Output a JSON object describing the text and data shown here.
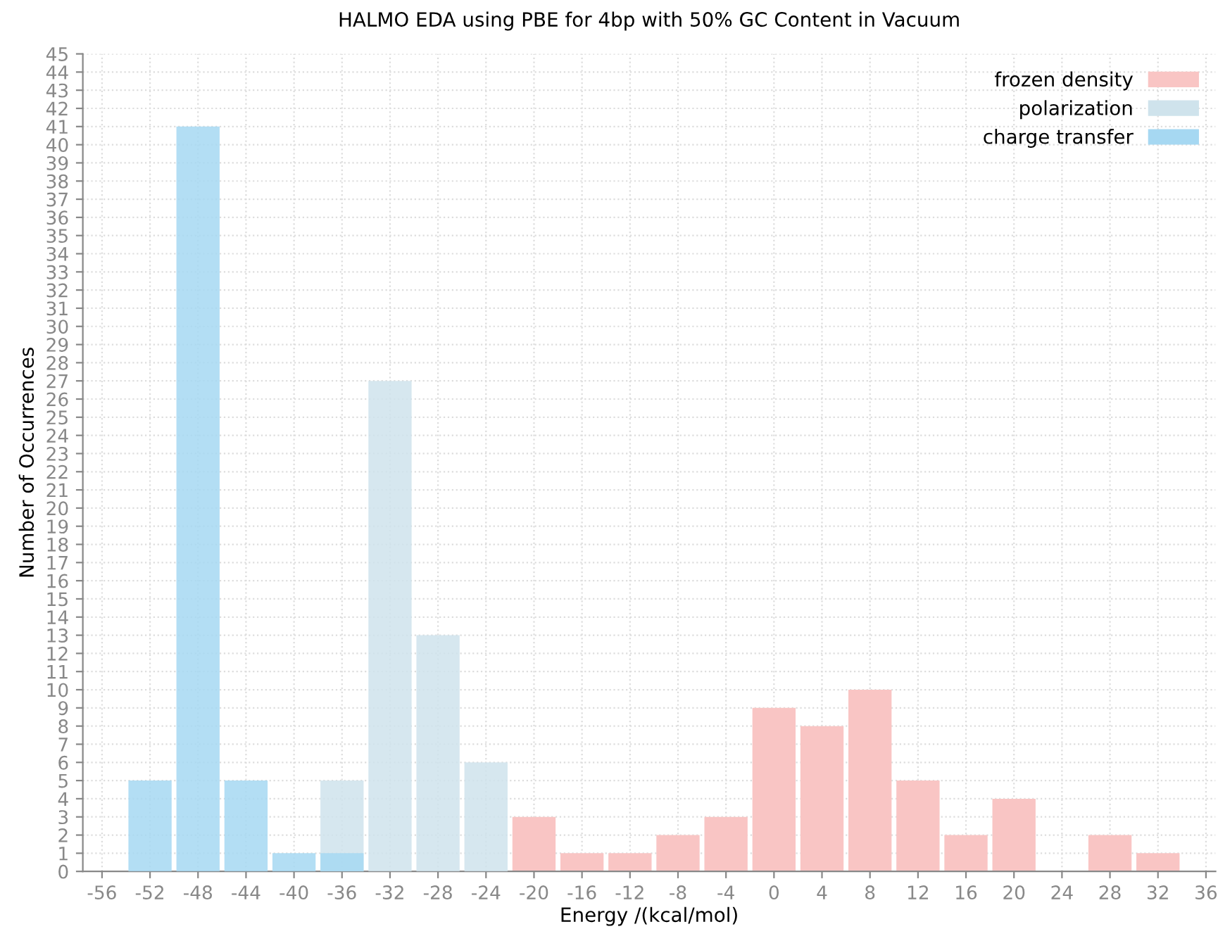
{
  "chart_data": {
    "type": "histogram",
    "title": "HALMO EDA using PBE for 4bp with 50% GC Content in Vacuum",
    "xlabel": "Energy /(kcal/mol)",
    "ylabel": "Number of Occurrences",
    "bins": [
      -54,
      -50,
      -46,
      -42,
      -38,
      -34,
      -30,
      -26,
      -22,
      -18,
      -14,
      -10,
      -6,
      -2,
      2,
      6,
      10,
      14,
      18,
      22,
      26,
      30,
      34
    ],
    "series": [
      {
        "name": "frozen density",
        "color": "#f9c5c4",
        "values": [
          0,
          0,
          0,
          0,
          0,
          0,
          0,
          0,
          3,
          1,
          1,
          2,
          3,
          9,
          8,
          10,
          5,
          2,
          4,
          0,
          2,
          1
        ]
      },
      {
        "name": "polarization",
        "color": "#cfe3ec",
        "values": [
          0,
          0,
          0,
          0,
          5,
          27,
          13,
          6,
          0,
          0,
          0,
          0,
          0,
          0,
          0,
          0,
          0,
          0,
          0,
          0,
          0,
          0
        ]
      },
      {
        "name": "charge transfer",
        "color": "#a6d8f2",
        "values": [
          5,
          41,
          5,
          1,
          1,
          0,
          0,
          0,
          0,
          0,
          0,
          0,
          0,
          0,
          0,
          0,
          0,
          0,
          0,
          0,
          0,
          0
        ]
      }
    ],
    "xlim": [
      -57.6,
      36.8
    ],
    "xticks": [
      -56,
      -52,
      -48,
      -44,
      -40,
      -36,
      -32,
      -28,
      -24,
      -20,
      -16,
      -12,
      -8,
      -4,
      0,
      4,
      8,
      12,
      16,
      20,
      24,
      28,
      32,
      36
    ],
    "ylim": [
      0,
      45
    ],
    "yticks": [
      0,
      1,
      2,
      3,
      4,
      5,
      6,
      7,
      8,
      9,
      10,
      11,
      12,
      13,
      14,
      15,
      16,
      17,
      18,
      19,
      20,
      21,
      22,
      23,
      24,
      25,
      26,
      27,
      28,
      29,
      30,
      31,
      32,
      33,
      34,
      35,
      36,
      37,
      38,
      39,
      40,
      41,
      42,
      43,
      44,
      45
    ],
    "grid": true,
    "legend": "top right"
  }
}
